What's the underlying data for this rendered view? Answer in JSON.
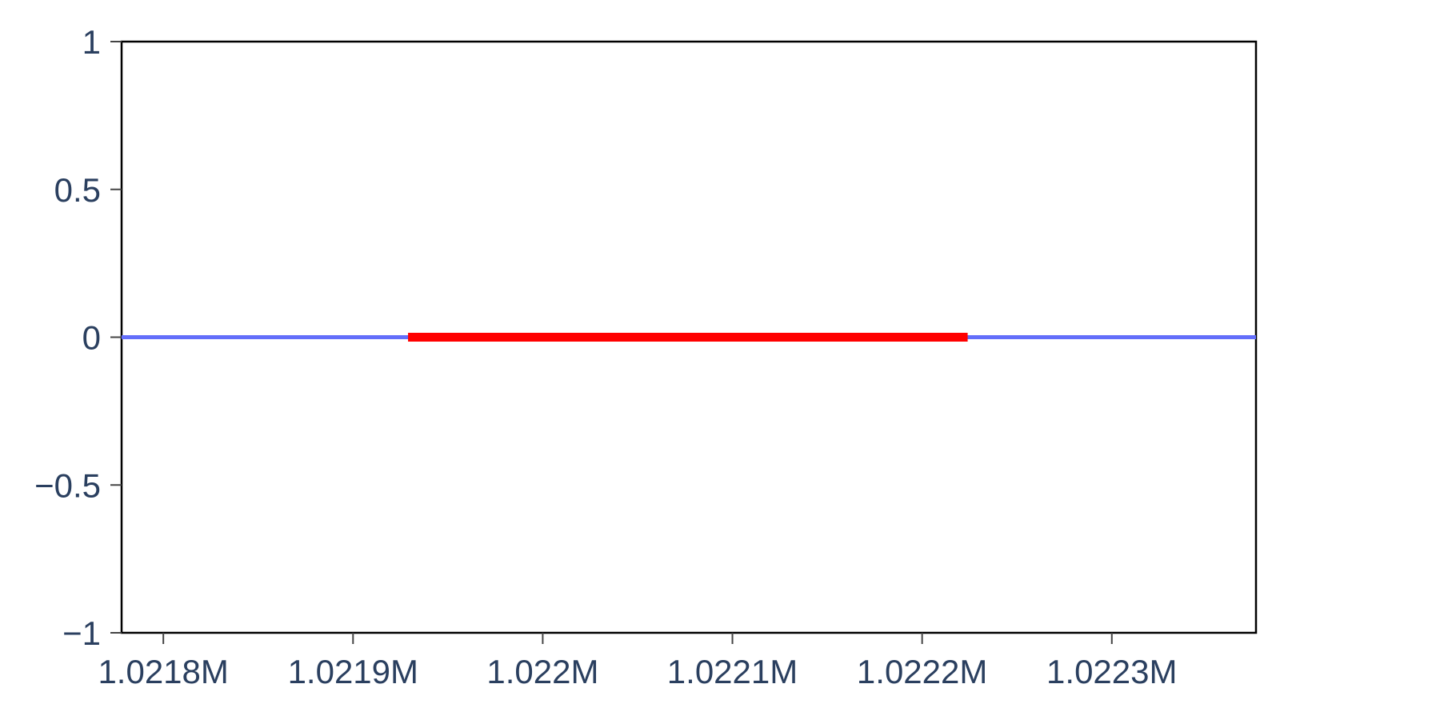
{
  "chart_data": {
    "type": "line",
    "title": "",
    "xlabel": "",
    "ylabel": "",
    "xlim": [
      1021778,
      1022376
    ],
    "ylim": [
      -1,
      1
    ],
    "x_ticks": [
      1021800,
      1021900,
      1022000,
      1022100,
      1022200,
      1022300
    ],
    "x_tick_labels": [
      "1.0218M",
      "1.0219M",
      "1.022M",
      "1.0221M",
      "1.0222M",
      "1.0223M"
    ],
    "y_ticks": [
      1,
      0.5,
      0,
      -0.5,
      -1
    ],
    "y_tick_labels": [
      "1",
      "0.5",
      "0",
      "−0.5",
      "−1"
    ],
    "grid": false,
    "legend": "none",
    "series": [
      {
        "color": "#636efa",
        "x": [
          1021778,
          1022376
        ],
        "y": [
          0,
          0
        ]
      },
      {
        "color": "#ff0000",
        "x": [
          1021929,
          1022224
        ],
        "y": [
          0,
          0
        ]
      }
    ]
  }
}
